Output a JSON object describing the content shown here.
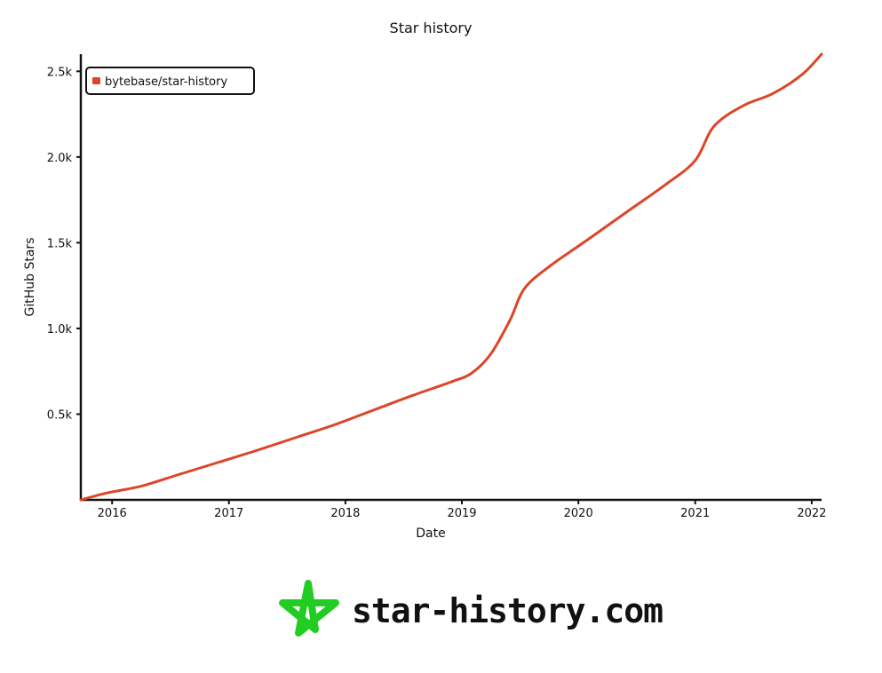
{
  "chart_data": {
    "type": "line",
    "title": "Star history",
    "xlabel": "Date",
    "ylabel": "GitHub Stars",
    "x_ticks": [
      "2016",
      "2017",
      "2018",
      "2019",
      "2020",
      "2021",
      "2022"
    ],
    "y_ticks": [
      "0.5k",
      "1.0k",
      "1.5k",
      "2.0k",
      "2.5k"
    ],
    "ylim": [
      0,
      2600
    ],
    "xlim": [
      "2015-09-25",
      "2022-02-01"
    ],
    "grid": false,
    "legend_position": "top-left",
    "series": [
      {
        "name": "bytebase/star-history",
        "color": "#dd4528",
        "points": [
          [
            "2015-09-25",
            0
          ],
          [
            "2015-12-15",
            40
          ],
          [
            "2016-04-01",
            80
          ],
          [
            "2016-08-01",
            150
          ],
          [
            "2016-12-01",
            220
          ],
          [
            "2017-04-01",
            290
          ],
          [
            "2017-08-01",
            365
          ],
          [
            "2017-12-01",
            440
          ],
          [
            "2018-04-01",
            525
          ],
          [
            "2018-08-01",
            610
          ],
          [
            "2018-12-01",
            690
          ],
          [
            "2019-02-01",
            740
          ],
          [
            "2019-04-01",
            850
          ],
          [
            "2019-06-01",
            1050
          ],
          [
            "2019-07-15",
            1230
          ],
          [
            "2019-10-01",
            1360
          ],
          [
            "2020-02-01",
            1520
          ],
          [
            "2020-06-01",
            1680
          ],
          [
            "2020-10-01",
            1840
          ],
          [
            "2021-01-01",
            1980
          ],
          [
            "2021-03-01",
            2180
          ],
          [
            "2021-06-01",
            2300
          ],
          [
            "2021-09-01",
            2370
          ],
          [
            "2021-12-01",
            2480
          ],
          [
            "2022-02-01",
            2600
          ]
        ]
      }
    ]
  },
  "watermark": {
    "text": "star-history.com",
    "icon": "star-icon",
    "icon_color": "#22cc22"
  }
}
